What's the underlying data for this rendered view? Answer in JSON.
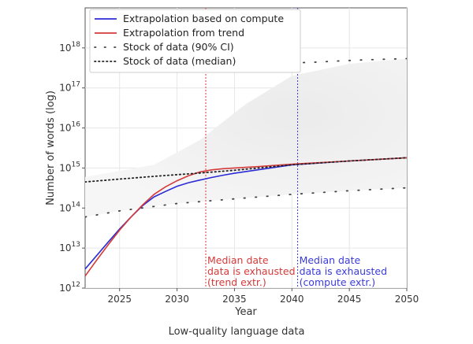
{
  "chart_data": {
    "type": "line",
    "xlabel": "Year",
    "ylabel": "Number of words (log)",
    "caption": "Low-quality language data",
    "log_y": true,
    "xlim": [
      2022,
      2050
    ],
    "ylim": [
      1000000000000.0,
      1e+19
    ],
    "x_ticks": [
      2025,
      2030,
      2035,
      2040,
      2045,
      2050
    ],
    "y_ticks": [
      {
        "base": "10",
        "exp": "12",
        "value": 1000000000000.0
      },
      {
        "base": "10",
        "exp": "13",
        "value": 10000000000000.0
      },
      {
        "base": "10",
        "exp": "14",
        "value": 100000000000000.0
      },
      {
        "base": "10",
        "exp": "15",
        "value": 1000000000000000.0
      },
      {
        "base": "10",
        "exp": "16",
        "value": 1e+16
      },
      {
        "base": "10",
        "exp": "17",
        "value": 1e+17
      },
      {
        "base": "10",
        "exp": "18",
        "value": 1e+18
      }
    ],
    "grid": true,
    "legend_position": "top-left",
    "series": [
      {
        "name": "Extrapolation based on compute",
        "style": "solid",
        "color": "#2b2bd6",
        "x": [
          2022,
          2023,
          2024,
          2025,
          2026,
          2027,
          2028,
          2029,
          2030,
          2031,
          2032,
          2033,
          2034,
          2035,
          2037,
          2040,
          2045,
          2050
        ],
        "y": [
          3000000000000.0,
          6500000000000.0,
          14000000000000.0,
          30000000000000.0,
          60000000000000.0,
          115000000000000.0,
          190000000000000.0,
          260000000000000.0,
          350000000000000.0,
          430000000000000.0,
          500000000000000.0,
          580000000000000.0,
          660000000000000.0,
          740000000000000.0,
          900000000000000.0,
          1200000000000000.0,
          1500000000000000.0,
          1800000000000000.0
        ]
      },
      {
        "name": "Extrapolation from trend",
        "style": "solid",
        "color": "#d43a3a",
        "x": [
          2022,
          2023,
          2024,
          2025,
          2026,
          2027,
          2028,
          2029,
          2030,
          2031,
          2032,
          2033,
          2034,
          2035,
          2037,
          2040,
          2045,
          2050
        ],
        "y": [
          2000000000000.0,
          5000000000000.0,
          12000000000000.0,
          28000000000000.0,
          60000000000000.0,
          120000000000000.0,
          220000000000000.0,
          340000000000000.0,
          480000000000000.0,
          640000000000000.0,
          800000000000000.0,
          900000000000000.0,
          960000000000000.0,
          1000000000000000.0,
          1080000000000000.0,
          1250000000000000.0,
          1500000000000000.0,
          1800000000000000.0
        ]
      },
      {
        "name": "Stock of data (90% CI)",
        "style": "sparse-dots",
        "color": "#444444",
        "lower": {
          "x": [
            2022,
            2025,
            2030,
            2035,
            2040,
            2045,
            2050
          ],
          "y": [
            60000000000000.0,
            85000000000000.0,
            130000000000000.0,
            170000000000000.0,
            220000000000000.0,
            270000000000000.0,
            320000000000000.0
          ]
        },
        "upper": {
          "x": [
            2040,
            2042,
            2044,
            2046,
            2048,
            2050
          ],
          "y": [
            4.2e+17,
            4.4e+17,
            4.7e+17,
            5e+17,
            5.2e+17,
            5.4e+17
          ]
        }
      },
      {
        "name": "Stock of data (median)",
        "style": "dotted",
        "color": "#222222",
        "x": [
          2022,
          2025,
          2028,
          2030,
          2032,
          2035,
          2040,
          2045,
          2050
        ],
        "y": [
          450000000000000.0,
          530000000000000.0,
          620000000000000.0,
          680000000000000.0,
          750000000000000.0,
          880000000000000.0,
          1200000000000000.0,
          1500000000000000.0,
          1800000000000000.0
        ]
      }
    ],
    "annotations": [
      {
        "x": 2032.5,
        "color": "#d43a3a",
        "lines": [
          "Median date",
          "data is exhausted",
          "(trend extr.)"
        ]
      },
      {
        "x": 2040.5,
        "color": "#3b3bd9",
        "lines": [
          "Median date",
          "data is exhausted",
          "(compute extr.)"
        ]
      }
    ]
  }
}
